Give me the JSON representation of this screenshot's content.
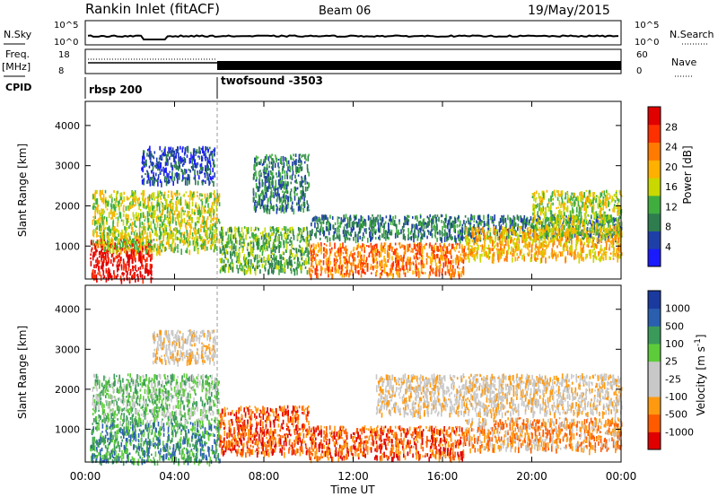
{
  "header": {
    "station": "Rankin Inlet (fitACF)",
    "beam": "Beam 06",
    "date": "19/May/2015"
  },
  "panels": {
    "nsky_label": "N.Sky",
    "nsky_ticks": [
      "10^5",
      "10^0"
    ],
    "nsearch_label": "N.Search",
    "nsearch_ticks": [
      "10^5",
      "10^0"
    ],
    "freq_label": "Freq.",
    "freq_unit": "[MHz]",
    "freq_ticks": [
      "18",
      "8"
    ],
    "nave_label": "Nave",
    "nave_ticks": [
      "60",
      "0"
    ],
    "cpid_label": "CPID",
    "cpid_modes": [
      "rbsp 200",
      "twofsound -3503"
    ]
  },
  "colors": {
    "power": [
      "#1a1aff",
      "#1f3fa8",
      "#2e7d4f",
      "#3fae3f",
      "#c8d800",
      "#ffb000",
      "#ff7a00",
      "#ff3000",
      "#e00000"
    ],
    "velocity": [
      "#e00000",
      "#ff5a00",
      "#ff9a10",
      "#c8c8c8",
      "#c8c8c8",
      "#5ccc3a",
      "#3a9a5a",
      "#2a5fb0",
      "#1a3a9f"
    ]
  },
  "chart_data": [
    {
      "type": "heatmap",
      "name": "power",
      "ylabel": "Slant Range [km]",
      "yticks": [
        1000,
        2000,
        3000,
        4000
      ],
      "ylim": [
        180,
        4600
      ],
      "colorbar_label": "Power [dB]",
      "colorbar_ticks": [
        "4",
        "8",
        "12",
        "16",
        "20",
        "24",
        "28"
      ],
      "scatter_regions": [
        {
          "t": [
            0.2,
            3.0
          ],
          "r": [
            180,
            1200
          ],
          "level": 8
        },
        {
          "t": [
            0.3,
            6.0
          ],
          "r": [
            900,
            2400
          ],
          "level": 4
        },
        {
          "t": [
            2.5,
            5.8
          ],
          "r": [
            2600,
            3500
          ],
          "level": 1
        },
        {
          "t": [
            6.0,
            10.0
          ],
          "r": [
            400,
            1500
          ],
          "level": 3
        },
        {
          "t": [
            7.5,
            10.0
          ],
          "r": [
            1900,
            3300
          ],
          "level": 2
        },
        {
          "t": [
            10.0,
            17.0
          ],
          "r": [
            300,
            1100
          ],
          "level": 6
        },
        {
          "t": [
            10.0,
            24.0
          ],
          "r": [
            1200,
            1800
          ],
          "level": 2
        },
        {
          "t": [
            17.0,
            24.0
          ],
          "r": [
            700,
            1500
          ],
          "level": 5
        },
        {
          "t": [
            20.0,
            24.0
          ],
          "r": [
            1300,
            2400
          ],
          "level": 4
        }
      ]
    },
    {
      "type": "heatmap",
      "name": "velocity",
      "xlabel": "Time UT",
      "xticks": [
        "00:00",
        "04:00",
        "08:00",
        "12:00",
        "16:00",
        "20:00",
        "00:00"
      ],
      "xlim": [
        0,
        24
      ],
      "ylabel": "Slant Range [km]",
      "yticks": [
        1000,
        2000,
        3000,
        4000
      ],
      "ylim": [
        180,
        4600
      ],
      "colorbar_label": "Velocity [m s^-1]",
      "colorbar_ticks": [
        "-1000",
        "-500",
        "-100",
        "-25",
        "25",
        "100",
        "500",
        "1000"
      ],
      "scatter_regions": [
        {
          "t": [
            0.2,
            6.0
          ],
          "r": [
            200,
            1200
          ],
          "level": 6
        },
        {
          "t": [
            0.3,
            6.0
          ],
          "r": [
            1200,
            2400
          ],
          "level": 5
        },
        {
          "t": [
            3.0,
            5.8
          ],
          "r": [
            2700,
            3500
          ],
          "level": 3
        },
        {
          "t": [
            6.0,
            10.0
          ],
          "r": [
            400,
            1600
          ],
          "level": 1
        },
        {
          "t": [
            10.0,
            17.0
          ],
          "r": [
            300,
            1100
          ],
          "level": 1
        },
        {
          "t": [
            13.0,
            24.0
          ],
          "r": [
            1400,
            2400
          ],
          "level": 3
        },
        {
          "t": [
            17.0,
            24.0
          ],
          "r": [
            500,
            1300
          ],
          "level": 2
        }
      ]
    }
  ]
}
